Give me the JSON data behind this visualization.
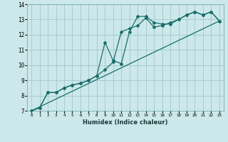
{
  "xlabel": "Humidex (Indice chaleur)",
  "bg_color": "#cce8ea",
  "grid_color": "#a0c8cc",
  "line_color": "#1a6e6a",
  "xlim": [
    -0.5,
    23.5
  ],
  "ylim": [
    7,
    14
  ],
  "xticks": [
    0,
    1,
    2,
    3,
    4,
    5,
    6,
    7,
    8,
    9,
    10,
    11,
    12,
    13,
    14,
    15,
    16,
    17,
    18,
    19,
    20,
    21,
    22,
    23
  ],
  "yticks": [
    7,
    8,
    9,
    10,
    11,
    12,
    13,
    14
  ],
  "line1_x": [
    0,
    1,
    2,
    3,
    4,
    5,
    6,
    7,
    8,
    9,
    10,
    11,
    12,
    13,
    14,
    15,
    16,
    17,
    18,
    19,
    20,
    21,
    22,
    23
  ],
  "line1_y": [
    7.0,
    7.2,
    8.2,
    8.2,
    8.5,
    8.7,
    8.8,
    9.0,
    9.3,
    11.5,
    10.3,
    10.1,
    12.2,
    13.2,
    13.2,
    12.8,
    12.7,
    12.7,
    13.0,
    13.3,
    13.5,
    13.3,
    13.5,
    12.9
  ],
  "line2_x": [
    0,
    1,
    2,
    3,
    4,
    5,
    6,
    7,
    8,
    9,
    10,
    11,
    12,
    13,
    14,
    15,
    16,
    17,
    18,
    19,
    20,
    21,
    22,
    23
  ],
  "line2_y": [
    7.0,
    7.2,
    8.2,
    8.2,
    8.5,
    8.7,
    8.8,
    9.0,
    9.3,
    9.7,
    10.2,
    12.2,
    12.4,
    12.6,
    13.1,
    12.5,
    12.6,
    12.8,
    13.0,
    13.3,
    13.5,
    13.3,
    13.5,
    12.9
  ],
  "line3_x": [
    0,
    23
  ],
  "line3_y": [
    7.0,
    12.9
  ]
}
